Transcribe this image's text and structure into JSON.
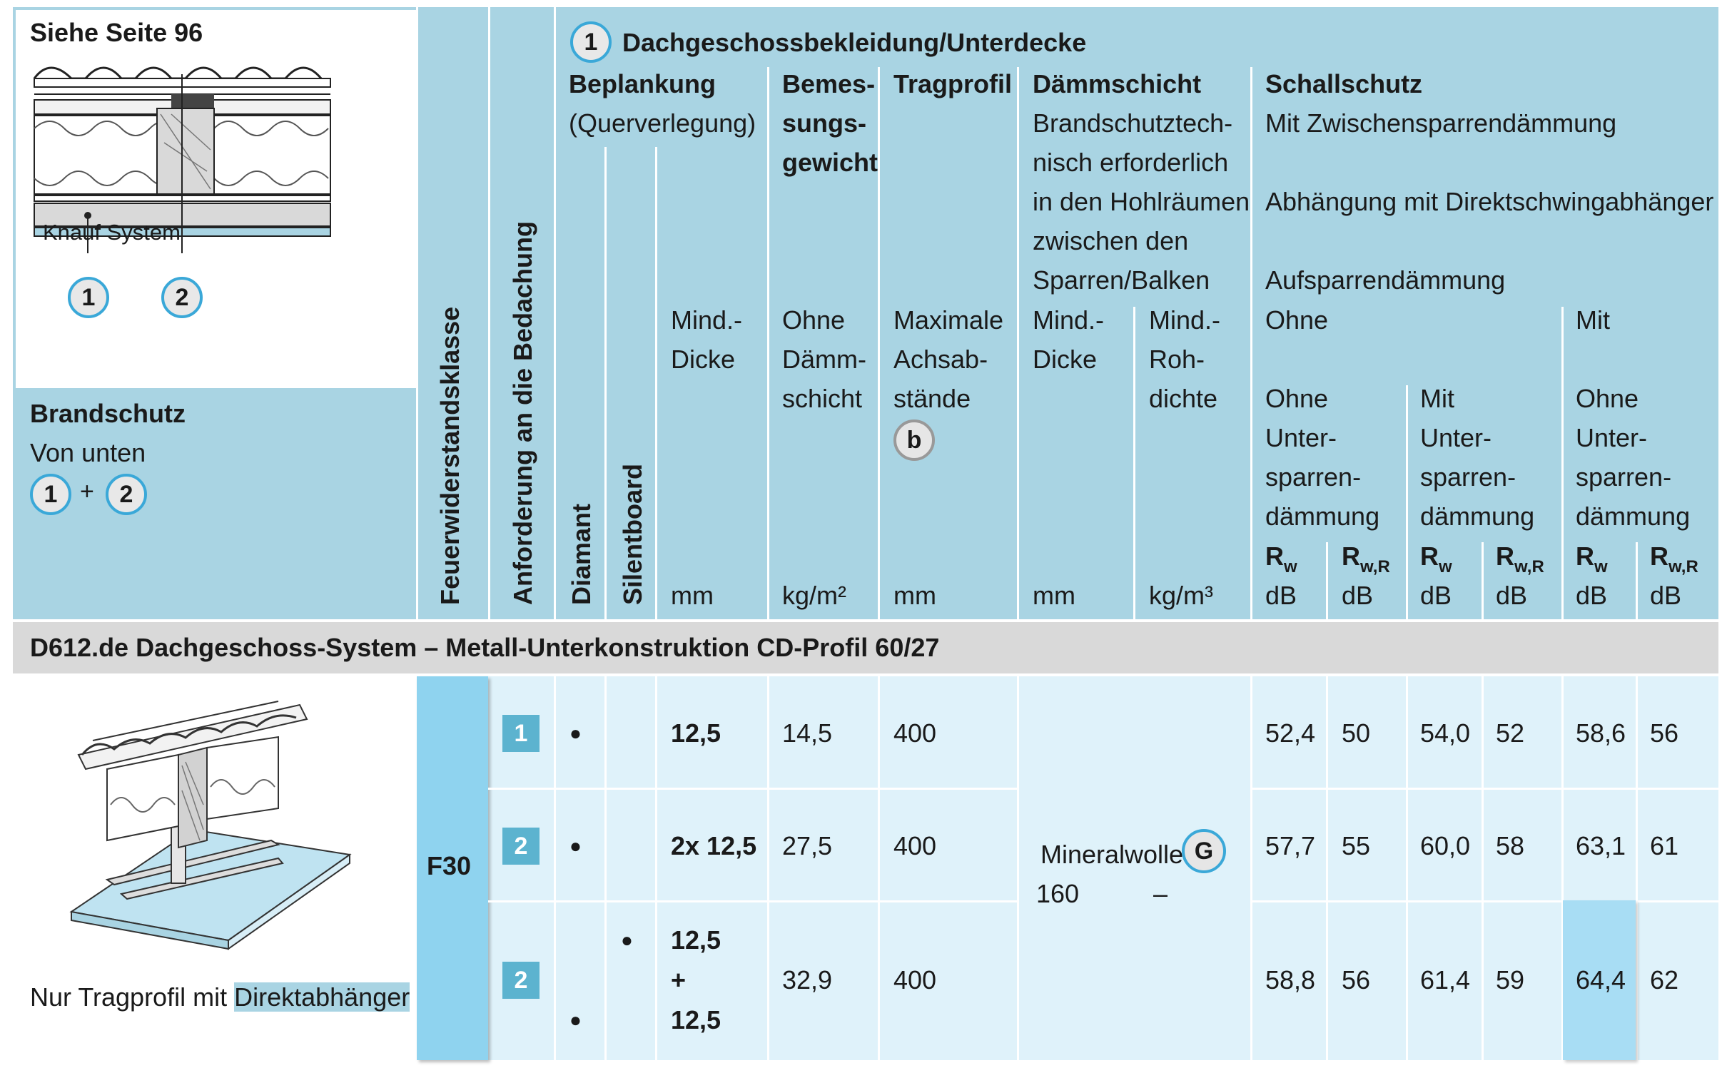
{
  "panel": {
    "see_page": "Siehe Seite 96",
    "knauf_label": "Knauf System",
    "marker_1": "1",
    "marker_2": "2",
    "fire_title": "Brandschutz",
    "fire_sub": "Von unten",
    "plus": "+"
  },
  "headers": {
    "fire_class": "Feuerwiderstandsklasse",
    "roof_req": "Anforderung an die Bedachung",
    "section_num": "1",
    "section_title": "Dachgeschossbekleidung/Unterdecke",
    "beplankung": "Beplankung",
    "querverlegung": "(Querverlegung)",
    "diamant": "Diamant",
    "silentboard": "Silentboard",
    "mind": "Mind.-",
    "dicke": "Dicke",
    "mm": "mm",
    "bemes1": "Bemes-",
    "bemes2": "sungs-",
    "bemes3": "gewicht",
    "ohne": "Ohne",
    "daemm": "Dämm-",
    "schicht": "schicht",
    "kgm2": "kg/m²",
    "tragprofil": "Tragprofil",
    "maximale": "Maximale",
    "achsab": "Achsab-",
    "staende": "stände",
    "b_marker": "b",
    "daemmschicht": "Dämmschicht",
    "ds1": "Brandschutztech-",
    "ds2": "nisch erforderlich",
    "ds3": "in den Hohlräumen",
    "ds4": "zwischen den",
    "ds5": "Sparren/Balken",
    "roh": "Roh-",
    "dichte": "dichte",
    "kgm3": "kg/m³",
    "schallschutz": "Schallschutz",
    "ss1": "Mit Zwischensparrendämmung",
    "ss2": "Abhängung mit Direktschwingabhänger",
    "ss3": "Aufsparrendämmung",
    "mit": "Mit",
    "unter": "Unter-",
    "sparren": "sparren-",
    "daemmung": "dämmung",
    "rw_r": "R",
    "rw_sub": "w",
    "rwr_sub": "w,R",
    "db": "dB"
  },
  "system_title": "D612.de Dachgeschoss-System – Metall-Unterkonstruktion CD-Profil 60/27",
  "caption_prefix": "Nur Tragprofil mit ",
  "caption_highlight": "Direktabhänger",
  "fire_value": "F30",
  "insulation": {
    "material": "Mineralwolle",
    "marker": "G",
    "thickness": "160",
    "density": "–"
  },
  "rows": [
    {
      "badge": "1",
      "diamant": "●",
      "silent": "",
      "dicke": "12,5",
      "gewicht": "14,5",
      "achs": "400",
      "r1": "52,4",
      "r2": "50",
      "r3": "54,0",
      "r4": "52",
      "r5": "58,6",
      "r6": "56"
    },
    {
      "badge": "2",
      "diamant": "●",
      "silent": "",
      "dicke": "2x 12,5",
      "gewicht": "27,5",
      "achs": "400",
      "r1": "57,7",
      "r2": "55",
      "r3": "60,0",
      "r4": "58",
      "r5": "63,1",
      "r6": "61"
    },
    {
      "badge": "2",
      "diamant": "●",
      "silent": "●",
      "dicke_a": "12,5",
      "dicke_b": "+",
      "dicke_c": "12,5",
      "gewicht": "32,9",
      "achs": "400",
      "r1": "58,8",
      "r2": "56",
      "r3": "61,4",
      "r4": "59",
      "r5": "64,4",
      "r6": "62"
    }
  ],
  "colors": {
    "header": "#a9d4e3",
    "body": "#dff2fa",
    "badge": "#5cb3cf",
    "f30": "#8fd3ef",
    "band": "#d9d9d9"
  }
}
